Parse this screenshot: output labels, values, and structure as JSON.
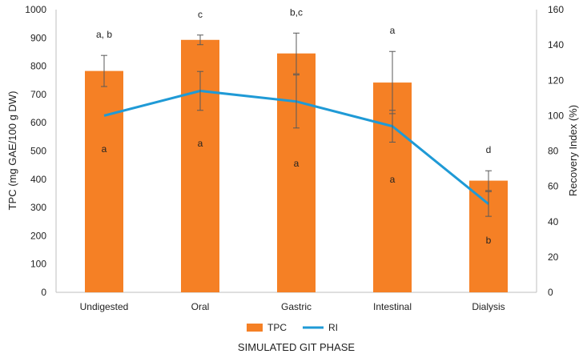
{
  "chart_data": {
    "type": "bar",
    "title": "",
    "xlabel": "SIMULATED GIT PHASE",
    "ylabel": "TPC (mg GAE/100 g DW)",
    "y2label": "Recovery Index (%)",
    "ylim": [
      0,
      1000
    ],
    "y2lim": [
      0,
      160
    ],
    "yticks": [
      0,
      100,
      200,
      300,
      400,
      500,
      600,
      700,
      800,
      900,
      1000
    ],
    "y2ticks": [
      0,
      20,
      40,
      60,
      80,
      100,
      120,
      140,
      160
    ],
    "categories": [
      "Undigested",
      "Oral",
      "Gastric",
      "Intestinal",
      "Dialysis"
    ],
    "series": [
      {
        "name": "TPC",
        "kind": "bar",
        "axis": "left",
        "color": "#F58025",
        "values": [
          783,
          893,
          845,
          742,
          395
        ],
        "errors": [
          55,
          17,
          72,
          110,
          35
        ],
        "annotations": [
          "a, b",
          "c",
          "b,c",
          "a",
          "d"
        ]
      },
      {
        "name": "RI",
        "kind": "line",
        "axis": "right",
        "color": "#1F9AD6",
        "values": [
          100,
          114,
          108,
          94,
          50
        ],
        "errors": [
          0,
          11,
          15,
          9,
          7
        ],
        "annotations": [
          "a",
          "a",
          "a",
          "a",
          "b"
        ]
      }
    ],
    "legend": [
      "TPC",
      "RI"
    ],
    "legend_position": "bottom",
    "grid": false
  }
}
